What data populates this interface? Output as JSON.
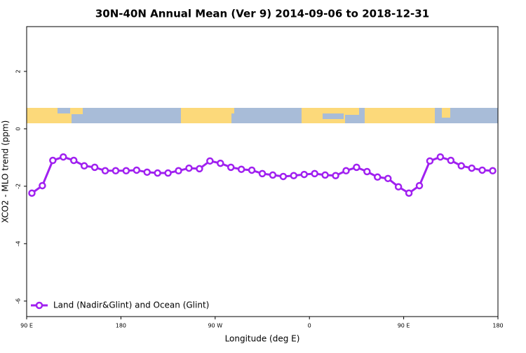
{
  "chart_data": {
    "type": "line",
    "title": "30N-40N Annual Mean (Ver 9)   2014-09-06 to 2018-12-31",
    "x_label": "Longitude (deg E)",
    "y_label": "XCO2 - MLO trend (ppm)",
    "x": [
      95,
      105,
      115,
      125,
      135,
      145,
      155,
      165,
      175,
      185,
      195,
      205,
      215,
      225,
      235,
      245,
      255,
      265,
      275,
      285,
      295,
      305,
      315,
      325,
      335,
      345,
      355,
      365,
      375,
      385,
      395,
      405,
      415,
      425,
      435,
      445,
      455,
      465,
      475,
      485,
      495,
      505,
      515,
      525,
      535
    ],
    "series": [
      {
        "name": "Land (Nadir&Glint) and Ocean (Glint)",
        "color": "#a020f0",
        "values": [
          -2.24,
          -1.98,
          -1.1,
          -0.98,
          -1.1,
          -1.29,
          -1.34,
          -1.46,
          -1.46,
          -1.46,
          -1.44,
          -1.51,
          -1.54,
          -1.54,
          -1.46,
          -1.37,
          -1.39,
          -1.12,
          -1.2,
          -1.34,
          -1.41,
          -1.44,
          -1.56,
          -1.61,
          -1.66,
          -1.63,
          -1.59,
          -1.56,
          -1.61,
          -1.63,
          -1.46,
          -1.34,
          -1.49,
          -1.68,
          -1.73,
          -2.02,
          -2.24,
          -1.98,
          -1.12,
          -0.98,
          -1.1,
          -1.29,
          -1.37,
          -1.44,
          -1.46
        ]
      }
    ],
    "xlim": [
      90,
      540
    ],
    "xticks": [
      {
        "value": 90,
        "label": "90 E"
      },
      180,
      {
        "value": 270,
        "label": "90 W"
      },
      {
        "value": 360,
        "label": "0"
      },
      {
        "value": 450,
        "label": "90 E"
      },
      {
        "value": 540,
        "label": "180"
      }
    ],
    "ylim": [
      -6.54,
      3.56
    ],
    "yticks": [
      2,
      0,
      -2,
      -4,
      -6
    ],
    "legend": "bottomleft"
  }
}
